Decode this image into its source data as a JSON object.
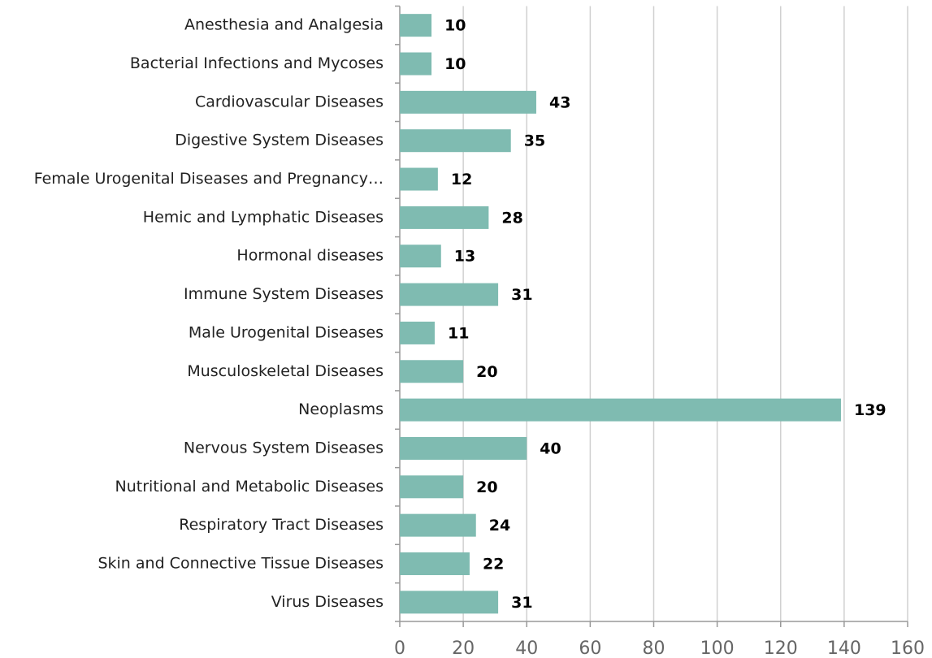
{
  "chart_data": {
    "type": "bar",
    "orientation": "horizontal",
    "categories": [
      "Anesthesia and Analgesia",
      "Bacterial Infections and Mycoses",
      "Cardiovascular Diseases",
      "Digestive System Diseases",
      "Female Urogenital Diseases and Pregnancy…",
      "Hemic and Lymphatic Diseases",
      "Hormonal diseases",
      "Immune System Diseases",
      "Male Urogenital Diseases",
      "Musculoskeletal Diseases",
      "Neoplasms",
      "Nervous System Diseases",
      "Nutritional and Metabolic Diseases",
      "Respiratory Tract Diseases",
      "Skin and Connective Tissue Diseases",
      "Virus Diseases"
    ],
    "values": [
      10,
      10,
      43,
      35,
      12,
      28,
      13,
      31,
      11,
      20,
      139,
      40,
      20,
      24,
      22,
      31
    ],
    "color": "#7fbbb1",
    "xlim": [
      0,
      160
    ],
    "xticks": [
      0,
      20,
      40,
      60,
      80,
      100,
      120,
      140,
      160
    ],
    "grid": true
  }
}
